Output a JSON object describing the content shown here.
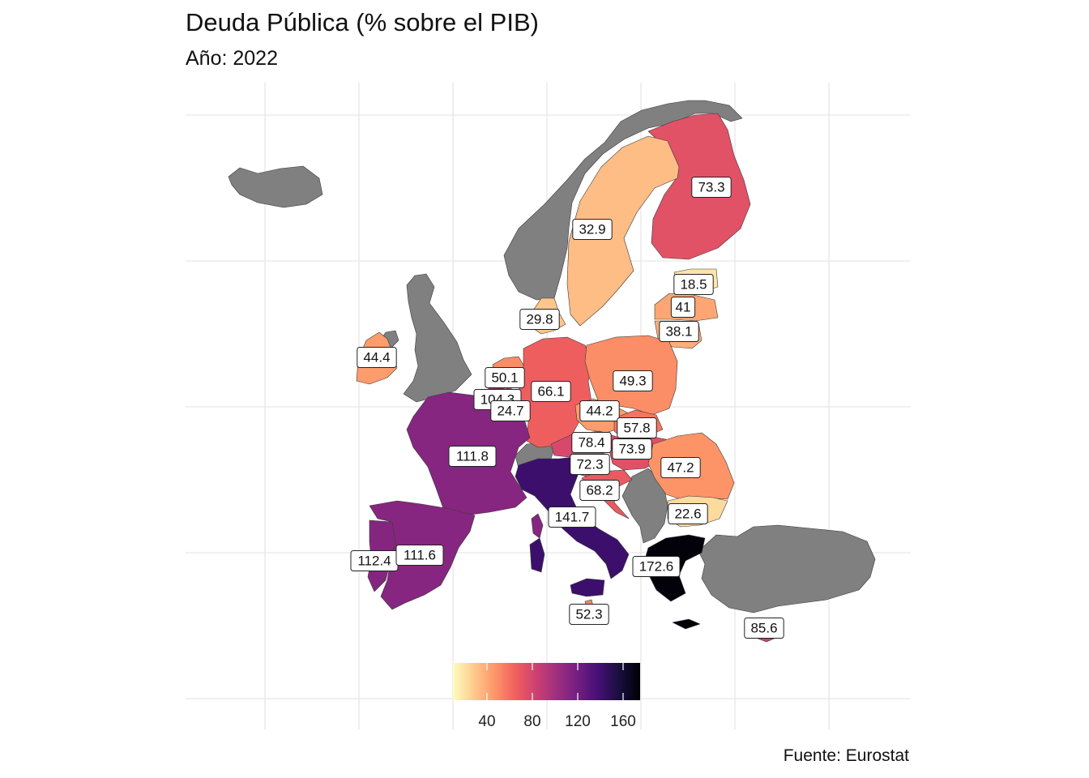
{
  "title": "Deuda Pública (% sobre el PIB)",
  "subtitle": "Año: 2022",
  "caption": "Fuente: Eurostat",
  "no_data_color": "#808080",
  "legend": {
    "min": 10,
    "max": 175,
    "ticks": [
      40,
      80,
      120,
      160
    ],
    "palette": [
      "#fcfdbf",
      "#feca8d",
      "#fd9668",
      "#f1605d",
      "#cd4071",
      "#9e2f7f",
      "#721f81",
      "#440f76",
      "#180f3d",
      "#000004"
    ]
  },
  "map_data": {
    "variable": "Deuda Pública (% sobre el PIB)",
    "year": "2022",
    "countries": [
      {
        "name": "Finland",
        "value": 73.3
      },
      {
        "name": "Sweden",
        "value": 32.9
      },
      {
        "name": "Estonia",
        "value": 18.5
      },
      {
        "name": "Latvia",
        "value": 41
      },
      {
        "name": "Lithuania",
        "value": 38.1
      },
      {
        "name": "Denmark",
        "value": 29.8
      },
      {
        "name": "Ireland",
        "value": 44.4
      },
      {
        "name": "Netherlands",
        "value": 50.1
      },
      {
        "name": "Belgium",
        "value": 104.3
      },
      {
        "name": "Luxembourg",
        "value": 24.7
      },
      {
        "name": "Germany",
        "value": 66.1
      },
      {
        "name": "Poland",
        "value": 49.3
      },
      {
        "name": "Czechia",
        "value": 44.2
      },
      {
        "name": "Slovakia",
        "value": 57.8
      },
      {
        "name": "Austria",
        "value": 78.4
      },
      {
        "name": "Hungary",
        "value": 73.9
      },
      {
        "name": "Slovenia",
        "value": 72.3
      },
      {
        "name": "Croatia",
        "value": 68.2
      },
      {
        "name": "Romania",
        "value": 47.2
      },
      {
        "name": "Bulgaria",
        "value": 22.6
      },
      {
        "name": "France",
        "value": 111.8
      },
      {
        "name": "Italy",
        "value": 141.7
      },
      {
        "name": "Spain",
        "value": 111.6
      },
      {
        "name": "Portugal",
        "value": 112.4
      },
      {
        "name": "Malta",
        "value": 52.3
      },
      {
        "name": "Greece",
        "value": 172.6
      },
      {
        "name": "Cyprus",
        "value": 85.6
      }
    ]
  }
}
